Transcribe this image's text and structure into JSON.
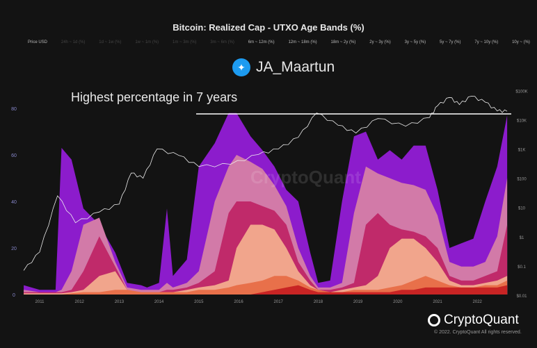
{
  "chart_data": {
    "type": "area",
    "title": "Bitcoin: Realized Cap - UTXO Age Bands (%)",
    "annotation": "Highest percentage in 7 years",
    "highlight_level_pct": 77,
    "twitter_handle": "JA_Maartun",
    "watermark": "CryptoQuant",
    "legend": [
      {
        "label": "Price USD",
        "active": true,
        "color": "#ffffff"
      },
      {
        "label": "24h ~ 1d (%)",
        "active": false,
        "color": "#444444"
      },
      {
        "label": "1d ~ 1w (%)",
        "active": false,
        "color": "#444444"
      },
      {
        "label": "1w ~ 1m (%)",
        "active": false,
        "color": "#444444"
      },
      {
        "label": "1m ~ 3m (%)",
        "active": false,
        "color": "#444444"
      },
      {
        "label": "3m ~ 6m (%)",
        "active": false,
        "color": "#444444"
      },
      {
        "label": "6m ~ 12m (%)",
        "active": true,
        "color": "#8c1ccc"
      },
      {
        "label": "12m ~ 18m (%)",
        "active": true,
        "color": "#d27aa8"
      },
      {
        "label": "18m ~ 2y (%)",
        "active": true,
        "color": "#c02a6a"
      },
      {
        "label": "2y ~ 3y (%)",
        "active": true,
        "color": "#f1a58c"
      },
      {
        "label": "3y ~ 5y (%)",
        "active": true,
        "color": "#e8704a"
      },
      {
        "label": "5y ~ 7y (%)",
        "active": true,
        "color": "#d84030"
      },
      {
        "label": "7y ~ 10y (%)",
        "active": true,
        "color": "#c02020"
      },
      {
        "label": "10y ~ (%)",
        "active": true,
        "color": "#a01818"
      }
    ],
    "x_ticks": [
      "2011",
      "2012",
      "2013",
      "2014",
      "2015",
      "2016",
      "2017",
      "2018",
      "2019",
      "2020",
      "2021",
      "2022"
    ],
    "y_left_ticks": [
      "0",
      "20",
      "40",
      "60",
      "80"
    ],
    "y_left_range": [
      0,
      100
    ],
    "y_right_ticks": [
      "$0.01",
      "$0.1",
      "$1",
      "$10",
      "$100",
      "$1K",
      "$10K",
      "$100K"
    ],
    "y_right_range_log": [
      0.01,
      100000
    ],
    "x": [
      2010.6,
      2011.0,
      2011.4,
      2011.55,
      2011.8,
      2012.1,
      2012.5,
      2012.9,
      2013.2,
      2013.55,
      2013.7,
      2014.0,
      2014.2,
      2014.35,
      2014.7,
      2015.0,
      2015.4,
      2015.75,
      2015.95,
      2016.3,
      2016.6,
      2016.9,
      2017.2,
      2017.5,
      2017.8,
      2018.0,
      2018.3,
      2018.6,
      2018.9,
      2019.2,
      2019.5,
      2019.8,
      2020.1,
      2020.4,
      2020.7,
      2021.0,
      2021.3,
      2021.6,
      2021.9,
      2022.2,
      2022.5,
      2022.75
    ],
    "stacked_tops_pct": [
      {
        "name": "6m ~ 12m (%)",
        "color": "#8c1ccc",
        "values": [
          4,
          2,
          2,
          63,
          58,
          37,
          30,
          18,
          5,
          4,
          3,
          5,
          37,
          8,
          15,
          55,
          65,
          78,
          78,
          68,
          62,
          55,
          45,
          40,
          18,
          5,
          6,
          40,
          68,
          70,
          58,
          62,
          58,
          64,
          64,
          45,
          20,
          22,
          24,
          40,
          55,
          77
        ]
      },
      {
        "name": "12m ~ 18m (%)",
        "color": "#d27aa8",
        "values": [
          2,
          1,
          1,
          2,
          10,
          30,
          33,
          14,
          3,
          2,
          2,
          2,
          5,
          3,
          5,
          10,
          40,
          55,
          60,
          57,
          54,
          47,
          38,
          20,
          8,
          3,
          3,
          5,
          35,
          55,
          52,
          50,
          48,
          47,
          45,
          34,
          14,
          12,
          12,
          14,
          25,
          50
        ]
      },
      {
        "name": "18m ~ 2y (%)",
        "color": "#c02a6a",
        "values": [
          1,
          1,
          1,
          1,
          2,
          10,
          25,
          12,
          2,
          1,
          1,
          1,
          2,
          2,
          3,
          5,
          10,
          35,
          40,
          40,
          38,
          36,
          30,
          14,
          6,
          2,
          2,
          3,
          5,
          30,
          35,
          30,
          28,
          27,
          25,
          20,
          8,
          6,
          6,
          8,
          10,
          30
        ]
      },
      {
        "name": "2y ~ 3y (%)",
        "color": "#f1a58c",
        "values": [
          0.5,
          0.5,
          0.5,
          0.5,
          1,
          2,
          8,
          10,
          2,
          1,
          1,
          1,
          1,
          1,
          2,
          3,
          4,
          6,
          20,
          30,
          30,
          28,
          20,
          10,
          4,
          2,
          1,
          2,
          3,
          4,
          8,
          20,
          24,
          24,
          20,
          14,
          6,
          4,
          4,
          5,
          6,
          8
        ]
      },
      {
        "name": "3y ~ 5y (%)",
        "color": "#e8704a",
        "values": [
          0,
          0,
          0,
          0,
          0.5,
          1,
          1,
          2,
          2,
          1,
          1,
          1,
          1,
          1,
          1,
          2,
          2,
          3,
          4,
          5,
          6,
          8,
          8,
          6,
          3,
          2,
          1,
          1,
          2,
          2,
          2,
          3,
          4,
          6,
          8,
          6,
          4,
          3,
          3,
          4,
          4,
          6
        ]
      },
      {
        "name": "5y ~ 7y (%) + older",
        "color": "#c82424",
        "values": [
          0,
          0,
          0,
          0,
          0,
          0,
          0,
          0,
          0,
          0,
          0,
          0,
          0,
          0,
          0,
          0,
          0,
          0,
          0,
          0,
          1,
          2,
          3,
          4,
          2,
          1,
          1,
          1,
          1,
          1,
          1,
          1,
          2,
          2,
          3,
          3,
          3,
          3,
          3,
          3,
          3,
          4
        ]
      }
    ],
    "price_usd": {
      "x": [
        2010.6,
        2011.0,
        2011.45,
        2011.9,
        2012.5,
        2013.0,
        2013.3,
        2013.6,
        2013.95,
        2014.5,
        2015.0,
        2015.8,
        2016.5,
        2017.0,
        2017.5,
        2017.96,
        2018.5,
        2018.95,
        2019.5,
        2020.2,
        2020.8,
        2021.0,
        2021.3,
        2021.55,
        2021.85,
        2022.2,
        2022.5,
        2022.75
      ],
      "y": [
        0.07,
        0.3,
        25,
        3,
        7,
        13,
        150,
        100,
        1000,
        600,
        250,
        300,
        650,
        1000,
        2500,
        17000,
        6500,
        3500,
        11000,
        6000,
        12000,
        30000,
        58000,
        33000,
        64000,
        40000,
        20000,
        19500
      ]
    }
  },
  "footer": {
    "brand": "CryptoQuant",
    "copyright": "© 2022. CryptoQuant All rights reserved."
  }
}
